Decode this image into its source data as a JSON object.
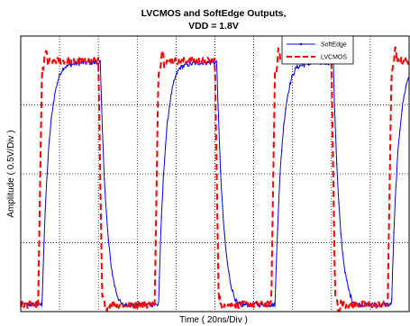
{
  "chart_data": {
    "type": "line",
    "title_lines": [
      "LVCMOS and SoftEdge Outputs,",
      "VDD = 1.8V"
    ],
    "xlabel": "Time ( 20ns/Div )",
    "ylabel": "Amplitude ( 0.5V/Div )",
    "x_divisions": 10,
    "y_divisions": 4,
    "xlim": [
      0,
      200
    ],
    "ylim": [
      0,
      2.0
    ],
    "grid": "dotted",
    "legend_position": "top-right",
    "period_ns": 60,
    "low_level_v": 0.05,
    "high_level_v": 1.82,
    "series": [
      {
        "name": "SoftEdge",
        "color": "#0000ff",
        "style": "solid-with-markers",
        "rising_edges_ns": [
          11,
          71,
          131,
          191
        ],
        "falling_edges_ns": [
          41,
          101,
          161
        ],
        "transition_time_ns": 11
      },
      {
        "name": "LVCMOS",
        "color": "#ff0000",
        "style": "dashed",
        "rising_edges_ns": [
          9,
          69,
          129,
          189
        ],
        "falling_edges_ns": [
          40,
          100,
          160
        ],
        "transition_time_ns": 2
      }
    ]
  },
  "colors": {
    "softedge": "#0000ff",
    "lvcmos": "#ff0000",
    "grid": "#000000",
    "frame": "#000000"
  }
}
